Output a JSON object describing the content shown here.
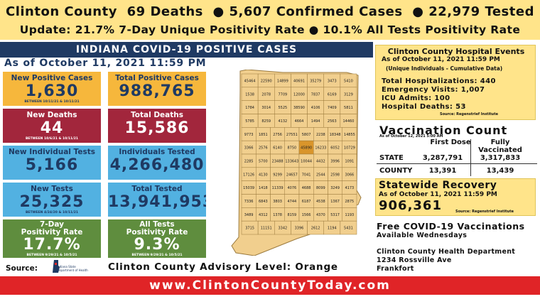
{
  "colors": {
    "banner_yellow": "#ffe48a",
    "navy": "#1f3a63",
    "tile_yellow": "#f6b73c",
    "tile_red": "#a2263c",
    "tile_blue": "#52b1e1",
    "tile_green": "#5f8d3e",
    "footer_red": "#e02427",
    "map_county": "#f1cf8e",
    "map_highlight": "#d9952b"
  },
  "banner": {
    "county": "Clinton County",
    "deaths": "69 Deaths",
    "confirmed": "● 5,607 Confirmed Cases",
    "tested": "● 22,979 Tested",
    "update": "Update: 21.7% 7-Day Unique Positivity Rate ● 10.1% All Tests Positivity Rate"
  },
  "state": {
    "header": "INDIANA COVID-19 POSITIVE CASES",
    "as_of": "As of October 11, 2021 11:59 PM"
  },
  "tiles": {
    "new_positive": {
      "label": "New Positive Cases",
      "value": "1,630",
      "note": "BETWEEN 10/11/21 & 10/11/21"
    },
    "total_positive": {
      "label": "Total Positive Cases",
      "value": "988,765"
    },
    "new_deaths": {
      "label": "New Deaths",
      "value": "44",
      "note": "BETWEEN 10/6/21 & 10/11/21"
    },
    "total_deaths": {
      "label": "Total Deaths",
      "value": "15,586"
    },
    "new_individual_tests": {
      "label": "New Individual Tests",
      "value": "5,166"
    },
    "individuals_tested": {
      "label": "Individuals Tested",
      "value": "4,266,480"
    },
    "new_tests": {
      "label": "New Tests",
      "value": "25,325",
      "note": "BETWEEN 4/24/20 & 10/11/21"
    },
    "total_tested": {
      "label": "Total Tested",
      "value": "13,941,953"
    },
    "seven_day": {
      "label1": "7-Day",
      "label2": "Positivity Rate",
      "value": "17.7%",
      "note": "BETWEEN 9/29/21 & 10/5/21"
    },
    "all_tests": {
      "label1": "All Tests",
      "label2": "Positivity Rate",
      "value": "9.3%",
      "note": "BETWEEN 9/29/21 & 10/5/21"
    }
  },
  "map": {
    "county_values": [
      [
        "45464",
        "22590",
        "14899",
        "40691",
        "35279",
        "3473",
        "5410"
      ],
      [
        "1538",
        "2078",
        "7709",
        "12000",
        "7837",
        "6169",
        "3129"
      ],
      [
        "1784",
        "3014",
        "5525",
        "38590",
        "4106",
        "7409",
        "5811"
      ],
      [
        "5785",
        "8259",
        "4132",
        "4664",
        "1494",
        "2563",
        "14460"
      ],
      [
        "9773",
        "1851",
        "2756",
        "27551",
        "5807",
        "2238",
        "18348",
        "14855"
      ],
      [
        "3366",
        "2576",
        "6140",
        "8750",
        "45890",
        "16233",
        "6052",
        "10729"
      ],
      [
        "2285",
        "5700",
        "23488",
        "133643",
        "10044",
        "4432",
        "3996",
        "1091"
      ],
      [
        "17126",
        "4130",
        "9299",
        "24657",
        "7041",
        "2544",
        "2598",
        "3066"
      ],
      [
        "15039",
        "1418",
        "11339",
        "4076",
        "4688",
        "8099",
        "3249",
        "4173"
      ],
      [
        "7336",
        "6843",
        "3803",
        "4744",
        "6187",
        "4538",
        "1367",
        "2875"
      ],
      [
        "3489",
        "4312",
        "1378",
        "8159",
        "1566",
        "4370",
        "5317",
        "1193"
      ],
      [
        "3715",
        "11151",
        "3342",
        "3396",
        "2612",
        "1194",
        "5431"
      ]
    ]
  },
  "hospital": {
    "title": "Clinton County Hospital Events",
    "as_of": "As of October 11, 2021 11:59 PM",
    "subtitle": "(Unique Individuals - Cumulative Data)",
    "hospitalizations": "Total Hospitalizations: 440",
    "emergency": "Emergency Visits: 1,007",
    "icu": "ICU Admits: 100",
    "deaths": "Hospital Deaths: 53",
    "source": "Source: Regenstrief Institute"
  },
  "vaccination": {
    "title": "Vaccination Count",
    "as_of": "As of October 12, 2021 5:00 AM",
    "col_first": "First Dose",
    "col_full": "Fully Vaccinated",
    "state_label": "STATE",
    "state_first": "3,287,791",
    "state_full": "3,317,833",
    "county_label": "COUNTY",
    "county_first": "13,391",
    "county_full": "13,439"
  },
  "recovery": {
    "title": "Statewide Recovery",
    "as_of": "As of October 11, 2021 11:59 PM",
    "value": "906,361",
    "source": "Source: Regenstrief Institute"
  },
  "info": {
    "free_vac": "Free COVID-19 Vaccinations",
    "days": "Available Wednesdays",
    "dept": "Clinton County Health Department",
    "address": "1234 Rossville Ave",
    "city": "Frankfort"
  },
  "bottom": {
    "source_label": "Source:",
    "logo_line1": "Indiana State",
    "logo_line2": "Department of Health",
    "advisory": "Clinton County Advisory Level: Orange"
  },
  "footer": {
    "url": "www.ClintonCountyToday.com"
  }
}
